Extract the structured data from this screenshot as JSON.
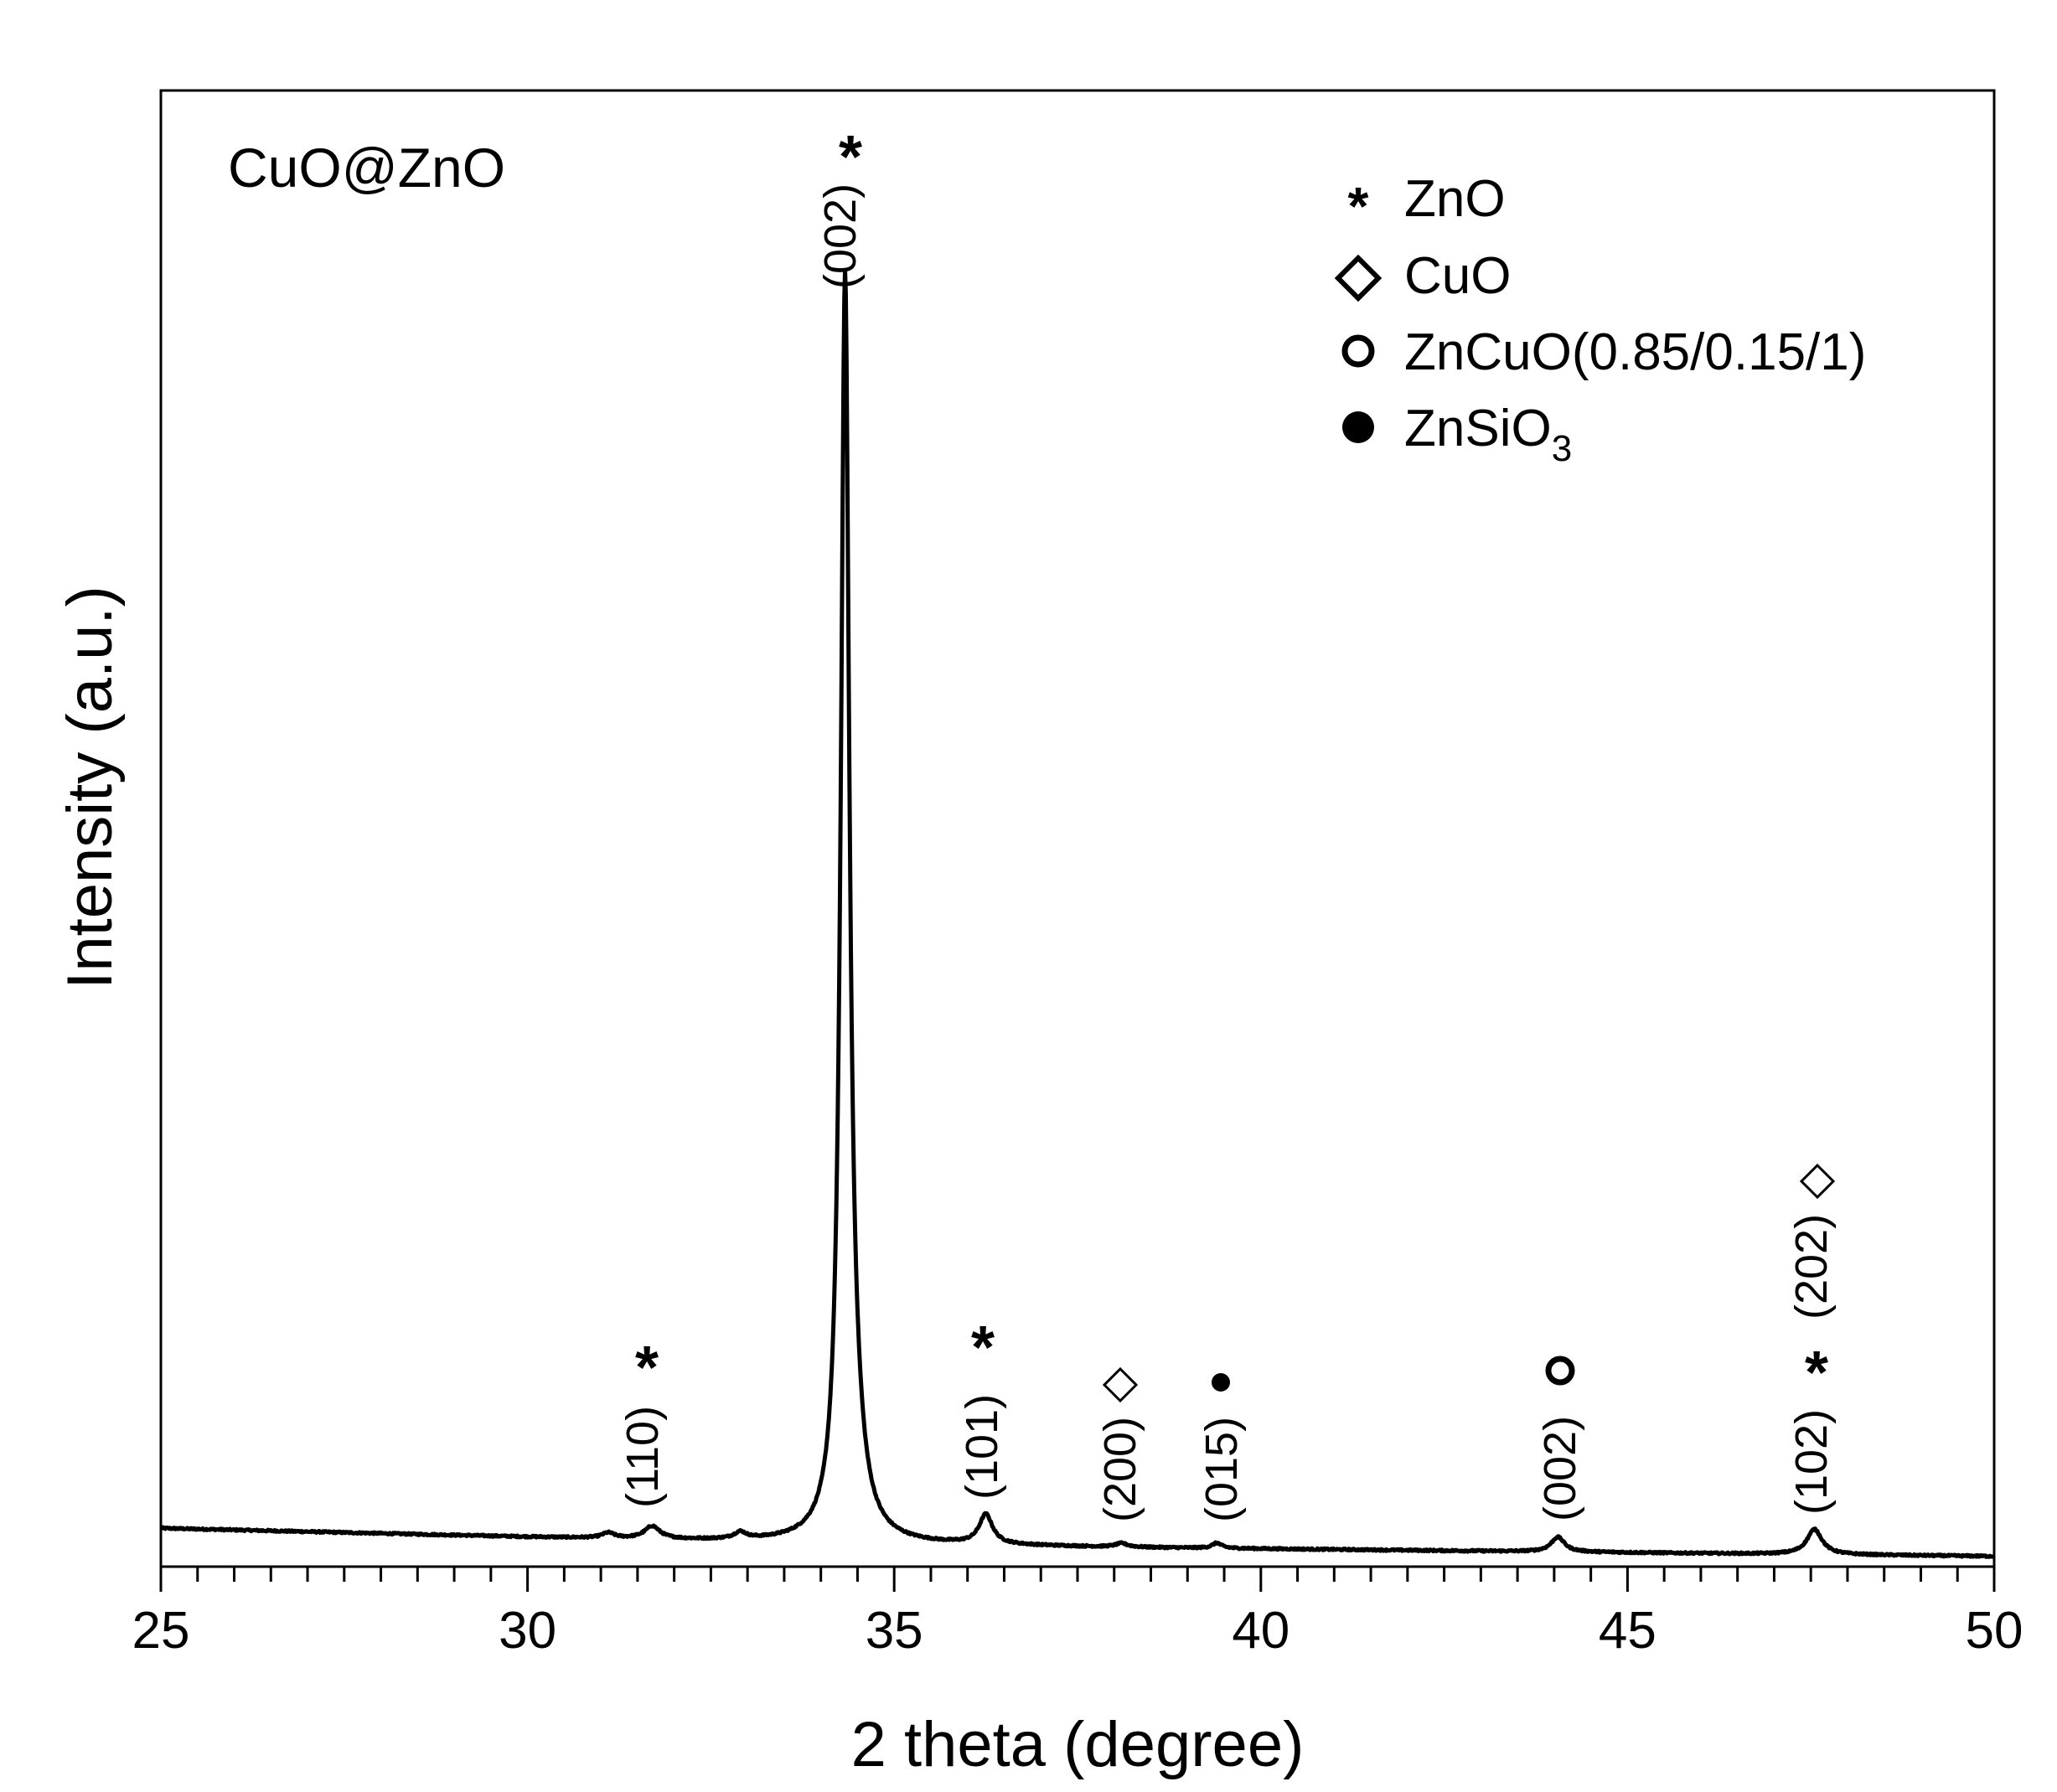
{
  "chart_data": {
    "type": "line",
    "sample_label": "CuO@ZnO",
    "xlabel": "2 theta (degree)",
    "ylabel": "Intensity (a.u.)",
    "xlim": [
      25,
      50
    ],
    "xticks": [
      25,
      30,
      35,
      40,
      45,
      50
    ],
    "xtick_labels": [
      "25",
      "30",
      "35",
      "40",
      "45",
      "50"
    ],
    "minor_tick_step": 0.5,
    "yticks": "none",
    "ylim": [
      0,
      100
    ],
    "grid": false,
    "legend_position": "top-right",
    "legend": [
      {
        "marker": "asterisk",
        "label": "ZnO"
      },
      {
        "marker": "diamond-open",
        "label": "CuO"
      },
      {
        "marker": "circle-open",
        "label": "ZnCuO(0.85/0.15/1)"
      },
      {
        "marker": "circle-filled",
        "label": "ZnSiO",
        "subscript": "3"
      }
    ],
    "baseline": [
      [
        25,
        2.6
      ],
      [
        30,
        2.0
      ],
      [
        34,
        1.6
      ],
      [
        38,
        1.3
      ],
      [
        44,
        1.0
      ],
      [
        50,
        0.7
      ]
    ],
    "peaks": [
      {
        "x": 31.1,
        "height": 0.35,
        "width": 0.2
      },
      {
        "x": 31.7,
        "height": 0.85,
        "width": 0.25
      },
      {
        "x": 32.9,
        "height": 0.45,
        "width": 0.2
      },
      {
        "x": 34.33,
        "height": 83.5,
        "width": 0.14
      },
      {
        "x": 34.45,
        "height": 4.0,
        "width": 0.35
      },
      {
        "x": 36.25,
        "height": 2.0,
        "width": 0.22
      },
      {
        "x": 38.1,
        "height": 0.25,
        "width": 0.2
      },
      {
        "x": 39.4,
        "height": 0.35,
        "width": 0.15
      },
      {
        "x": 44.05,
        "height": 1.0,
        "width": 0.22
      },
      {
        "x": 47.55,
        "height": 1.7,
        "width": 0.25
      }
    ],
    "annotations": [
      {
        "x": 31.75,
        "hkl": "(110)",
        "marker": "asterisk"
      },
      {
        "x": 34.4,
        "hkl": "(002)",
        "marker": "asterisk"
      },
      {
        "x": 36.25,
        "hkl": "(101)",
        "marker": "asterisk"
      },
      {
        "x": 38.1,
        "hkl": "(200)",
        "marker": "diamond-open"
      },
      {
        "x": 39.35,
        "hkl": "(015)",
        "marker": "circle-filled"
      },
      {
        "x": 44.1,
        "hkl": "(002)",
        "marker": "circle-open"
      },
      {
        "x": 47.5,
        "hkl": "(102)",
        "marker": "asterisk"
      },
      {
        "x": 47.5,
        "hkl": "(202)",
        "marker": "diamond-open"
      }
    ]
  }
}
